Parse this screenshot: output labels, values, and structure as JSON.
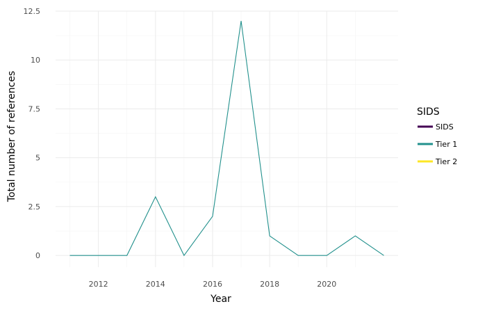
{
  "chart_data": {
    "type": "line",
    "xlabel": "Year",
    "ylabel": "Total number of references",
    "xlim": [
      2010.5,
      2022.5
    ],
    "ylim": [
      -0.6,
      12.5
    ],
    "x_ticks": [
      2012,
      2014,
      2016,
      2018,
      2020
    ],
    "x_tick_labels": [
      "2012",
      "2014",
      "2016",
      "2018",
      "2020"
    ],
    "y_ticks": [
      0,
      2.5,
      5,
      7.5,
      10,
      12.5
    ],
    "y_tick_labels": [
      "0",
      "2.5",
      "5",
      "7.5",
      "10",
      "12.5"
    ],
    "grid": true,
    "legend": {
      "title": "SIDS",
      "position": "right",
      "entries": [
        {
          "name": "SIDS",
          "color": "#440154"
        },
        {
          "name": "Tier 1",
          "color": "#21908C"
        },
        {
          "name": "Tier 2",
          "color": "#FDE725"
        }
      ]
    },
    "series": [
      {
        "name": "Tier 1",
        "color": "#21908C",
        "x": [
          2011,
          2012,
          2013,
          2014,
          2015,
          2016,
          2017,
          2018,
          2019,
          2020,
          2021,
          2022
        ],
        "values": [
          0,
          0,
          0,
          3,
          0,
          2,
          12,
          1,
          0,
          0,
          1,
          0
        ]
      }
    ]
  }
}
